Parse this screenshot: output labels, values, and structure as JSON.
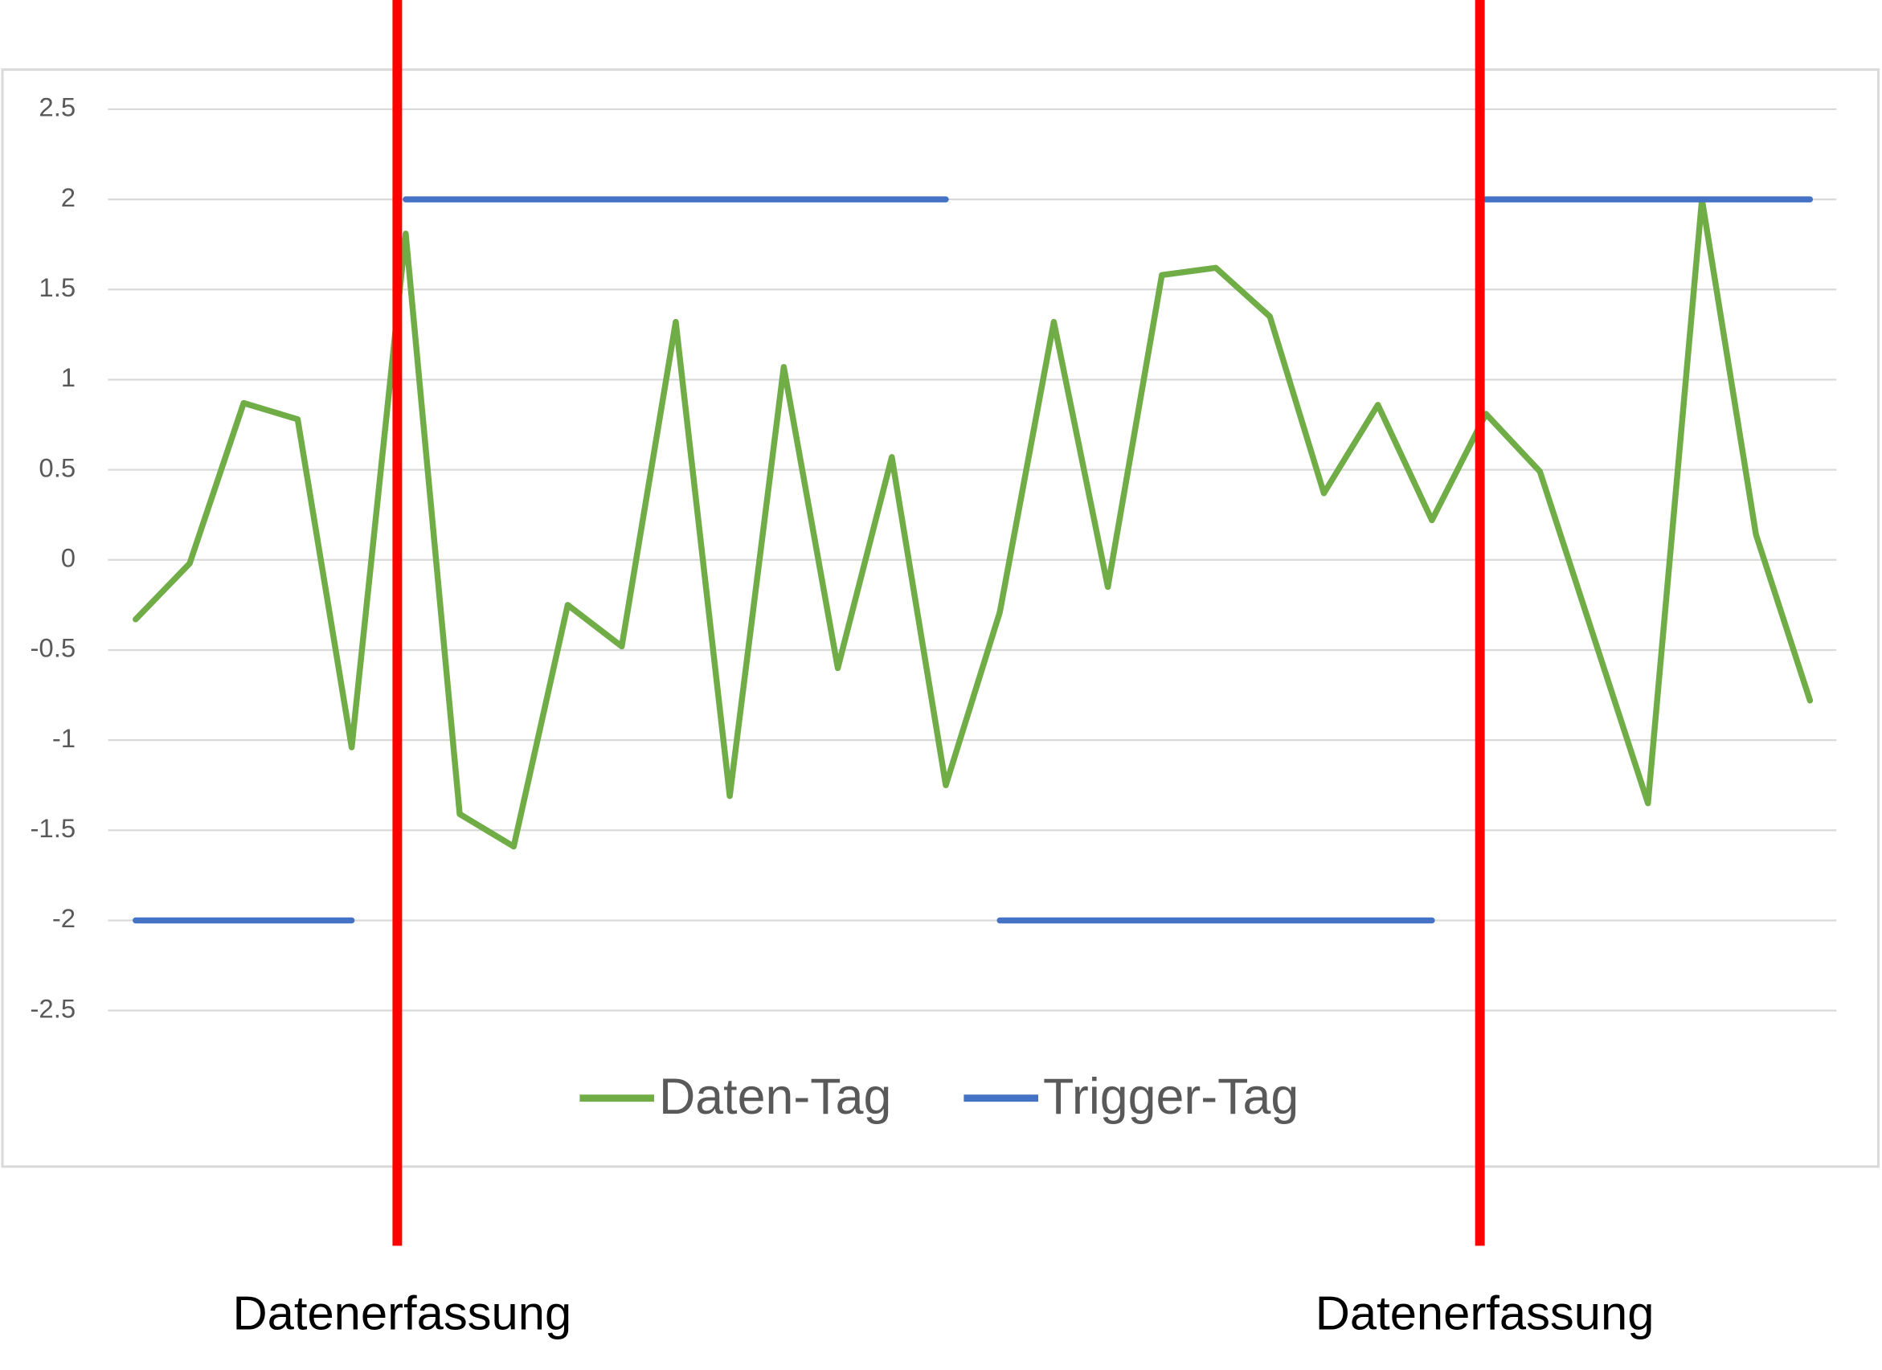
{
  "chart_data": {
    "type": "line",
    "categories": [
      null,
      null,
      null,
      null,
      null,
      null,
      null,
      null,
      null,
      null,
      null,
      null,
      null,
      null,
      null,
      null,
      null,
      null,
      null,
      null,
      null,
      null,
      null,
      null,
      null,
      null,
      null,
      null,
      null,
      null,
      null,
      null
    ],
    "series": [
      {
        "name": "Daten-Tag",
        "color": "#70ad47",
        "values": [
          -0.33,
          -0.02,
          0.87,
          0.78,
          -1.04,
          1.81,
          -1.41,
          -1.59,
          -0.25,
          -0.48,
          1.32,
          -1.31,
          1.07,
          -0.6,
          0.57,
          -1.25,
          -0.29,
          1.32,
          -0.15,
          1.58,
          1.62,
          1.35,
          0.37,
          0.86,
          0.22,
          0.81,
          0.49,
          -0.43,
          -1.35,
          2.0,
          0.14,
          -0.78
        ]
      },
      {
        "name": "Trigger-Tag",
        "color": "#4472c4",
        "values": [
          -2,
          -2,
          -2,
          -2,
          -2,
          2,
          2,
          2,
          2,
          2,
          2,
          2,
          2,
          2,
          2,
          2,
          -2,
          -2,
          -2,
          -2,
          -2,
          -2,
          -2,
          -2,
          -2,
          2,
          2,
          2,
          2,
          2,
          2,
          2
        ]
      }
    ],
    "ylim": [
      -2.5,
      2.5
    ],
    "yticks": [
      2.5,
      2,
      1.5,
      1,
      0.5,
      0,
      -0.5,
      -1,
      -1.5,
      -2,
      -2.5
    ],
    "grid": true,
    "legend": "bottom",
    "annotations": [
      "Datenerfassung",
      "Datenerfassung"
    ],
    "marker_color": "#ff0000"
  }
}
